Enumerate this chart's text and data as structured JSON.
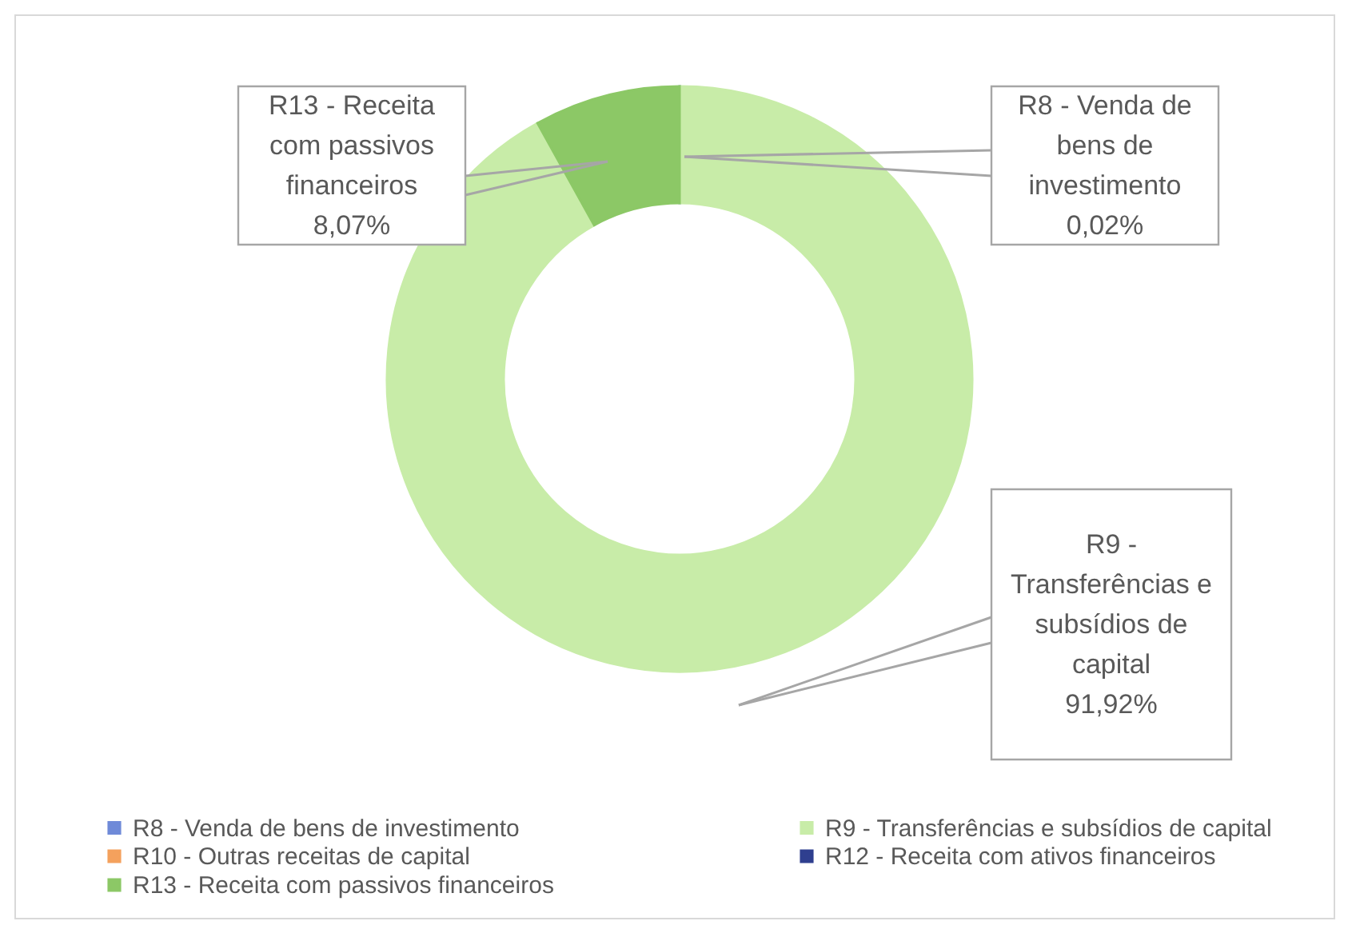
{
  "chart_data": {
    "type": "donut",
    "categories": [
      "R8 - Venda de bens de investimento",
      "R9 - Transferências e subsídios de capital",
      "R10 - Outras receitas de capital",
      "R12 - Receita com ativos financeiros",
      "R13 - Receita com passivos financeiros"
    ],
    "values": [
      0.02,
      91.92,
      0,
      0,
      8.07
    ],
    "colors": [
      "#6f8ad8",
      "#c8eca8",
      "#f4a15d",
      "#2f3f8f",
      "#8cc866"
    ],
    "value_labels": [
      "0,02%",
      "91,92%",
      null,
      null,
      "8,07%"
    ],
    "legend": "bottom"
  }
}
